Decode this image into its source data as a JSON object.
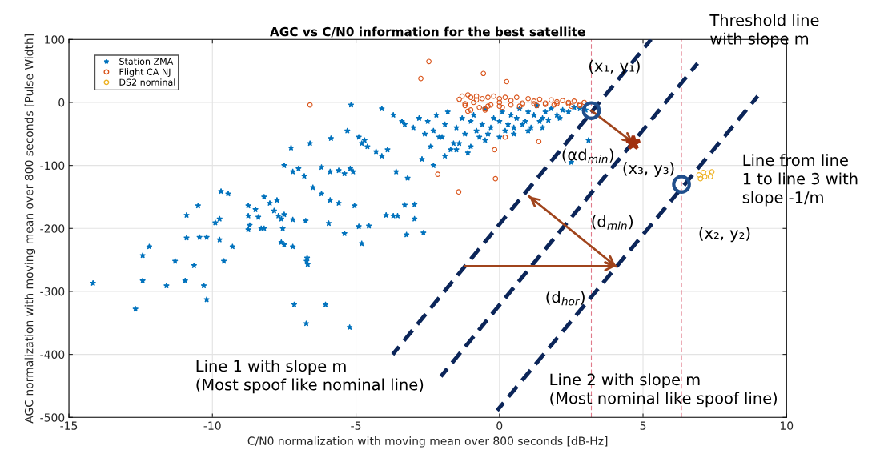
{
  "chart_data": {
    "type": "scatter",
    "title": "AGC vs C/N0 information for the best satellite",
    "xlabel": "C/N0 normalization with moving mean over 800 seconds [dB-Hz]",
    "ylabel": "AGC normalization with moving mean over 800 seconds [Pulse Width]",
    "xlim": [
      -15,
      10
    ],
    "xticks": [
      -15,
      -10,
      -5,
      0,
      5,
      10
    ],
    "ylim": [
      -500,
      100
    ],
    "yticks": [
      -500,
      -400,
      -300,
      -200,
      -100,
      0,
      100
    ],
    "grid": true,
    "legend": "top left",
    "series": [
      {
        "name": "Station ZMA",
        "color": "#0072bd",
        "marker": "star",
        "x": [
          -14.16,
          -12.68,
          -12.43,
          -12.43,
          -12.2,
          -11.6,
          -11.3,
          -10.95,
          -10.9,
          -10.9,
          -10.64,
          -10.5,
          -10.45,
          -10.2,
          -10.3,
          -10.2,
          -9.9,
          -9.75,
          -9.75,
          -9.6,
          -9.3,
          -8.75,
          -8.75,
          -8.7,
          -8.75,
          -8.5,
          -8.3,
          -8.2,
          -8.4,
          -7.7,
          -7.6,
          -7.5,
          -7.55,
          -7.6,
          -7.5,
          -7.2,
          -7.2,
          -7.15,
          -6.7,
          -6.72,
          -6.68,
          -6.75,
          -6.73,
          -6.06,
          -5.95,
          -5.4,
          -5.22,
          -5.05,
          -4.9,
          -4.55,
          -4.8,
          -3.95,
          -3.7,
          -3.55,
          -3.24,
          -2.96,
          -3.3,
          -2.96,
          -2.65,
          -9.7,
          -9.45,
          -8.2,
          -8.0,
          -7.85,
          -7.75,
          -7.5,
          -7.2,
          -7.0,
          -6.8,
          -7.26,
          -6.6,
          -6.5,
          -6.2,
          -5.9,
          -5.6,
          -6.2,
          -5.9,
          -5.6,
          -5.4,
          -5.2,
          -5.1,
          -5.87,
          -5.3,
          -4.9,
          -4.8,
          -4.7,
          -5.17,
          -4.6,
          -4.3,
          -4.1,
          -3.9,
          -4.1,
          -3.7,
          -3.4,
          -3.3,
          -3.0,
          -2.8,
          -2.6,
          -2.5,
          -2.3,
          -2.2,
          -2.0,
          -1.9,
          -1.8,
          -1.6,
          -1.5,
          -1.3,
          -1.2,
          -1.0,
          -0.9,
          -0.8,
          -0.6,
          -0.5,
          -0.3,
          -0.2,
          0.0,
          0.1,
          0.3,
          0.4,
          0.6,
          0.7,
          0.9,
          1.0,
          1.2,
          1.3,
          1.5,
          1.6,
          1.8,
          2.0,
          2.2,
          2.4,
          2.6,
          2.8,
          3.0,
          3.1,
          -2.4,
          -2.1,
          -1.7,
          -1.4,
          -1.1,
          -0.7,
          -0.4,
          0.2,
          0.5,
          0.8,
          1.1,
          1.4,
          1.7,
          2.1,
          2.5,
          -3.6,
          -3.2,
          -2.7,
          -2.3,
          -1.9,
          -1.5,
          -1.0,
          -0.5,
          0.0,
          0.5,
          1.0,
          1.5
        ],
        "values": [
          -287,
          -328,
          -243,
          -283,
          -229,
          -291,
          -252,
          -283,
          -179,
          -215,
          -259,
          -164,
          -214,
          -214,
          -291,
          -313,
          -191,
          -185,
          -218,
          -252,
          -229,
          -164,
          -180,
          -195,
          -202,
          -170,
          -200,
          -200,
          -182,
          -180,
          -185,
          -178,
          -200,
          -222,
          -226,
          -186,
          -229,
          -321,
          -247,
          -252,
          -257,
          -188,
          -351,
          -321,
          -192,
          -208,
          -357,
          -164,
          -197,
          -196,
          -224,
          -179,
          -180,
          -180,
          -210,
          -185,
          -163,
          -162,
          -207,
          -141,
          -145,
          -150,
          -160,
          -172,
          -155,
          -100,
          -110,
          -105,
          -117,
          -72,
          -65,
          -135,
          -145,
          -155,
          -160,
          -103,
          -110,
          -108,
          -113,
          -105,
          -110,
          -57,
          -45,
          -55,
          -65,
          -60,
          -4,
          -70,
          -78,
          -85,
          -75,
          -10,
          -20,
          -30,
          -35,
          -40,
          -25,
          -50,
          -30,
          -45,
          -20,
          -55,
          -35,
          -15,
          -65,
          -40,
          -25,
          -50,
          -30,
          -20,
          -45,
          -35,
          -10,
          -40,
          -25,
          -30,
          -15,
          -35,
          -20,
          -25,
          -10,
          -30,
          -15,
          -20,
          -5,
          -25,
          -15,
          -10,
          -20,
          -12,
          -15,
          -8,
          -10,
          -12,
          -60,
          -70,
          -55,
          -75,
          -65,
          -80,
          -55,
          -50,
          -45,
          -40,
          -35,
          -40,
          -30,
          -28,
          -25,
          -95,
          -110,
          -120,
          -90,
          -100,
          -85,
          -75,
          -70,
          -60,
          -55,
          -50,
          -45,
          -40
        ]
      },
      {
        "name": "Flight CA NJ",
        "color": "#d95319",
        "marker": "circle",
        "x": [
          -2.46,
          -2.74,
          -6.6,
          -2.15,
          -0.56,
          0.25,
          1.37,
          -0.17,
          -1.42,
          -0.14,
          0.2,
          -1.4,
          -1.3,
          -1.2,
          -1.1,
          -1.0,
          -1.0,
          -0.9,
          -0.8,
          -0.7,
          -0.6,
          -0.5,
          -0.4,
          -0.3,
          -0.2,
          0.0,
          0.0,
          0.2,
          0.4,
          0.6,
          0.8,
          1.0,
          1.2,
          1.4,
          1.6,
          1.8,
          2.0,
          2.2,
          2.4,
          2.6,
          2.8,
          2.95,
          -1.2,
          -0.8,
          -0.4,
          0.0,
          0.4,
          0.8,
          1.2,
          1.6,
          2.0,
          2.4,
          2.8,
          -1.1,
          -0.5,
          0.1,
          0.7,
          1.3,
          1.9,
          2.5
        ],
        "values": [
          65,
          38,
          -4,
          -114,
          46,
          33,
          -62,
          -75,
          -142,
          -121,
          -55,
          5,
          10,
          -5,
          12,
          -12,
          8,
          0,
          10,
          -8,
          6,
          -10,
          8,
          -4,
          10,
          -6,
          6,
          8,
          -4,
          8,
          -3,
          6,
          -2,
          5,
          -3,
          4,
          -2,
          3,
          -2,
          2,
          -5,
          0,
          -2,
          4,
          -6,
          0,
          3,
          -1,
          2,
          -1,
          1,
          0,
          -3,
          -14,
          -12,
          -8,
          -6,
          -5,
          -4,
          -6
        ]
      },
      {
        "name": "DS2 nominal",
        "color": "#edb120",
        "marker": "circle",
        "x": [
          6.95,
          7.1,
          7.25,
          7.4,
          7.35,
          7.15,
          7.0
        ],
        "values": [
          -115,
          -111,
          -112,
          -110,
          -118,
          -118,
          -121
        ]
      },
      {
        "type": "line",
        "color": "#0b2559",
        "line_style": "dashed",
        "x": [
          -3.72,
          5.28
        ],
        "values": [
          -400,
          100
        ]
      },
      {
        "type": "line",
        "color": "#0b2559",
        "line_style": "dashed",
        "x": [
          -2.04,
          6.9
        ],
        "values": [
          -435,
          62
        ]
      },
      {
        "type": "line",
        "color": "#0b2559",
        "line_style": "dashed",
        "x": [
          -0.08,
          9.0
        ],
        "values": [
          -489,
          10
        ]
      },
      {
        "type": "line",
        "color": "#a0441c",
        "line_style": "solid",
        "x": [
          3.2,
          4.66
        ],
        "values": [
          -13,
          -64
        ]
      },
      {
        "type": "line",
        "color": "#a0441c",
        "line_style": "solid",
        "x": [
          1.03,
          4.05
        ],
        "values": [
          -149,
          -260
        ]
      },
      {
        "type": "line",
        "color": "#a0441c",
        "line_style": "solid",
        "x": [
          -1.2,
          4.05
        ],
        "values": [
          -260,
          -260
        ]
      },
      {
        "color": "#1f4e8c",
        "marker": "circle",
        "x": [
          3.2,
          6.34
        ],
        "values": [
          -13,
          -130
        ]
      },
      {
        "color": "#a0300f",
        "marker": "star",
        "x": [
          4.66
        ],
        "values": [
          -64
        ]
      }
    ],
    "ref_lines": [
      {
        "axis": "x",
        "value": 3.2,
        "color": "#e07a8a",
        "line_style": "dashed"
      },
      {
        "axis": "x",
        "value": 6.34,
        "color": "#e07a8a",
        "line_style": "dashed"
      }
    ],
    "annotations": [
      {
        "text": "(x₁, y₁)",
        "x": 3.2,
        "y": -13
      },
      {
        "text": "(αd$_{min}$)",
        "x": 2.15,
        "y": -85
      },
      {
        "text": "(x₃, y₃)",
        "x": 4.66,
        "y": -64
      },
      {
        "text": "(d$_{min}$)",
        "x": 3.18,
        "y": -191
      },
      {
        "text": "(x₂, y₂)",
        "x": 6.34,
        "y": -130
      },
      {
        "text": "(d$_{hor}$)",
        "x": 1.59,
        "y": -260
      },
      "Threshold line\nwith slope m",
      "Line from line\n1 to line 3 with\nslope -1/m",
      "Line 1 with slope m\n(Most spoof like nominal line)",
      "Line 2 with slope m\n(Most nominal like spoof line)"
    ]
  }
}
